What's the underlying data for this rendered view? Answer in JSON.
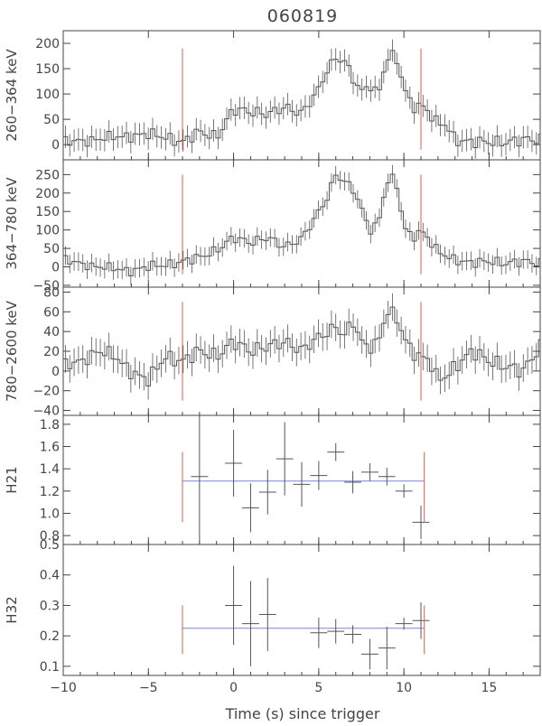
{
  "title": "060819",
  "xlabel": "Time (s) since trigger",
  "colors": {
    "axes": "#444444",
    "data": "#555555",
    "marker": "#e0584c",
    "fit": "#7a85d8"
  },
  "x_axis": {
    "range": [
      -10,
      18
    ],
    "ticks": [
      -10,
      -5,
      0,
      5,
      10,
      15
    ],
    "tick_labels": [
      "−10",
      "−5",
      "0",
      "5",
      "10",
      "15"
    ]
  },
  "chart_data": [
    {
      "type": "line",
      "ylabel": "260−364 keV",
      "ylim": [
        -30,
        225
      ],
      "yticks": [
        0,
        50,
        100,
        150,
        200
      ],
      "ytick_labels": [
        "0",
        "50",
        "100",
        "150",
        "200"
      ],
      "bin_width": 0.256,
      "markers_x": [
        -3,
        11
      ],
      "markers_y": [
        -10,
        190
      ],
      "x": [
        -10,
        -9,
        -8,
        -7,
        -6,
        -5,
        -4,
        -3,
        -2,
        -1,
        0,
        1,
        2,
        3,
        4,
        5,
        5.5,
        6,
        6.5,
        7,
        7.5,
        8,
        8.5,
        9,
        9.5,
        10,
        10.5,
        11,
        11.5,
        12,
        12.5,
        13,
        14,
        15,
        16,
        17,
        18
      ],
      "y": [
        5,
        8,
        10,
        15,
        18,
        20,
        15,
        5,
        25,
        15,
        70,
        65,
        60,
        75,
        60,
        110,
        150,
        170,
        165,
        130,
        105,
        120,
        100,
        170,
        175,
        115,
        75,
        80,
        60,
        40,
        40,
        10,
        5,
        5,
        5,
        10,
        10
      ],
      "err": 22
    },
    {
      "type": "line",
      "ylabel": "364−780 keV",
      "ylim": [
        -55,
        290
      ],
      "yticks": [
        -50,
        0,
        50,
        100,
        150,
        200,
        250
      ],
      "ytick_labels": [
        "−50",
        "0",
        "50",
        "100",
        "150",
        "200",
        "250"
      ],
      "bin_width": 0.256,
      "markers_x": [
        -3,
        11
      ],
      "markers_y": [
        -20,
        250
      ],
      "x": [
        -10,
        -9,
        -8,
        -7,
        -6,
        -5,
        -4,
        -3,
        -2,
        -1,
        0,
        1,
        2,
        3,
        4,
        5,
        5.5,
        6,
        6.5,
        7,
        7.5,
        8,
        8.5,
        9,
        9.5,
        10,
        10.5,
        11,
        11.5,
        12,
        12.5,
        13,
        14,
        15,
        16,
        17,
        18
      ],
      "y": [
        20,
        10,
        0,
        -5,
        -10,
        0,
        5,
        15,
        25,
        45,
        80,
        65,
        80,
        55,
        75,
        150,
        190,
        250,
        230,
        210,
        160,
        100,
        120,
        230,
        240,
        110,
        80,
        100,
        70,
        40,
        30,
        20,
        10,
        15,
        10,
        15,
        10
      ],
      "err": 25
    },
    {
      "type": "line",
      "ylabel": "780−2600 keV",
      "ylim": [
        -45,
        85
      ],
      "yticks": [
        -40,
        -20,
        0,
        20,
        40,
        60,
        80
      ],
      "ytick_labels": [
        "−40",
        "−20",
        "0",
        "20",
        "40",
        "60",
        "80"
      ],
      "bin_width": 0.256,
      "markers_x": [
        -3,
        11
      ],
      "markers_y": [
        -30,
        70
      ],
      "x": [
        -10,
        -9,
        -8,
        -7,
        -6,
        -5,
        -4,
        -3,
        -2,
        -1,
        0,
        1,
        2,
        3,
        4,
        5,
        5.5,
        6,
        6.5,
        7,
        7.5,
        8,
        8.5,
        9,
        9.5,
        10,
        10.5,
        11,
        11.5,
        12,
        12.5,
        13,
        14,
        15,
        16,
        17,
        18
      ],
      "y": [
        5,
        10,
        20,
        15,
        0,
        -10,
        15,
        10,
        20,
        15,
        30,
        20,
        25,
        30,
        20,
        35,
        40,
        45,
        35,
        50,
        30,
        25,
        30,
        60,
        55,
        35,
        20,
        15,
        10,
        -10,
        -5,
        5,
        20,
        10,
        5,
        0,
        25
      ],
      "err": 14
    },
    {
      "type": "scatter",
      "ylabel": "H21",
      "ylim": [
        0.72,
        1.88
      ],
      "yticks": [
        0.8,
        1.0,
        1.2,
        1.4,
        1.6,
        1.8
      ],
      "ytick_labels": [
        "0.8",
        "1.0",
        "1.2",
        "1.4",
        "1.6",
        "1.8"
      ],
      "fit": {
        "x": [
          -3,
          11.2
        ],
        "y": 1.29
      },
      "markers_x": [
        -3,
        11.2
      ],
      "markers_y": [
        0.92,
        1.55
      ],
      "points": [
        {
          "x": -2,
          "y": 1.33,
          "xerr": 0.5,
          "yerr": 0.6
        },
        {
          "x": 0,
          "y": 1.45,
          "xerr": 0.5,
          "yerr": 0.3
        },
        {
          "x": 1,
          "y": 1.05,
          "xerr": 0.5,
          "yerr": 0.22
        },
        {
          "x": 2,
          "y": 1.19,
          "xerr": 0.5,
          "yerr": 0.2
        },
        {
          "x": 3,
          "y": 1.49,
          "xerr": 0.5,
          "yerr": 0.33
        },
        {
          "x": 4,
          "y": 1.26,
          "xerr": 0.5,
          "yerr": 0.2
        },
        {
          "x": 5,
          "y": 1.34,
          "xerr": 0.5,
          "yerr": 0.13
        },
        {
          "x": 6,
          "y": 1.55,
          "xerr": 0.5,
          "yerr": 0.08
        },
        {
          "x": 7,
          "y": 1.28,
          "xerr": 0.5,
          "yerr": 0.1
        },
        {
          "x": 8,
          "y": 1.37,
          "xerr": 0.5,
          "yerr": 0.08
        },
        {
          "x": 9,
          "y": 1.33,
          "xerr": 0.5,
          "yerr": 0.08
        },
        {
          "x": 10,
          "y": 1.2,
          "xerr": 0.5,
          "yerr": 0.06
        },
        {
          "x": 11,
          "y": 0.92,
          "xerr": 0.5,
          "yerr": 0.15
        }
      ]
    },
    {
      "type": "scatter",
      "ylabel": "H32",
      "ylim": [
        0.07,
        0.5
      ],
      "yticks": [
        0.1,
        0.2,
        0.3,
        0.4,
        0.5
      ],
      "ytick_labels": [
        "0.1",
        "0.2",
        "0.3",
        "0.4",
        "0.5"
      ],
      "fit": {
        "x": [
          -3,
          11.2
        ],
        "y": 0.225
      },
      "markers_x": [
        -3,
        11.2
      ],
      "markers_y": [
        0.14,
        0.3
      ],
      "points": [
        {
          "x": 0,
          "y": 0.3,
          "xerr": 0.5,
          "yerr": 0.13
        },
        {
          "x": 1,
          "y": 0.24,
          "xerr": 0.5,
          "yerr": 0.14
        },
        {
          "x": 2,
          "y": 0.27,
          "xerr": 0.5,
          "yerr": 0.12
        },
        {
          "x": 5,
          "y": 0.21,
          "xerr": 0.5,
          "yerr": 0.05
        },
        {
          "x": 6,
          "y": 0.215,
          "xerr": 0.5,
          "yerr": 0.04
        },
        {
          "x": 7,
          "y": 0.205,
          "xerr": 0.5,
          "yerr": 0.03
        },
        {
          "x": 8,
          "y": 0.14,
          "xerr": 0.5,
          "yerr": 0.05
        },
        {
          "x": 9,
          "y": 0.16,
          "xerr": 0.5,
          "yerr": 0.07
        },
        {
          "x": 10,
          "y": 0.24,
          "xerr": 0.5,
          "yerr": 0.02
        },
        {
          "x": 11,
          "y": 0.25,
          "xerr": 0.5,
          "yerr": 0.06
        }
      ]
    }
  ]
}
